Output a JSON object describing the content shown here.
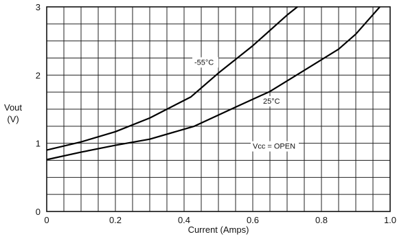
{
  "chart_data": {
    "type": "line",
    "title": "",
    "xlabel": "Current (Amps)",
    "ylabel": [
      "Vout",
      "(V)"
    ],
    "xlim": [
      0,
      1.0
    ],
    "ylim": [
      0,
      3
    ],
    "grid": true,
    "x_ticks": [
      {
        "value": 0,
        "label": "0"
      },
      {
        "value": 0.2,
        "label": "0.2"
      },
      {
        "value": 0.4,
        "label": "0.4"
      },
      {
        "value": 0.6,
        "label": "0.6"
      },
      {
        "value": 0.8,
        "label": "0.8"
      },
      {
        "value": 1.0,
        "label": "1.0"
      }
    ],
    "y_ticks": [
      {
        "value": 0,
        "label": "0"
      },
      {
        "value": 1,
        "label": "1"
      },
      {
        "value": 2,
        "label": "2"
      },
      {
        "value": 3,
        "label": "3"
      }
    ],
    "series": [
      {
        "name": "-55°C",
        "x": [
          0,
          0.1,
          0.2,
          0.3,
          0.42,
          0.5,
          0.6,
          0.7,
          0.73
        ],
        "y": [
          0.9,
          1.02,
          1.17,
          1.37,
          1.68,
          2.03,
          2.43,
          2.88,
          3.0
        ]
      },
      {
        "name": "25°C",
        "x": [
          0,
          0.1,
          0.2,
          0.3,
          0.43,
          0.55,
          0.65,
          0.75,
          0.85,
          0.9,
          0.97
        ],
        "y": [
          0.76,
          0.87,
          0.97,
          1.06,
          1.25,
          1.53,
          1.76,
          2.07,
          2.38,
          2.6,
          3.0
        ]
      }
    ],
    "annotations": [
      {
        "text": "-55°C",
        "x": 0.43,
        "y": 2.15
      },
      {
        "text": "25°C",
        "x": 0.63,
        "y": 1.58
      },
      {
        "text": "Vcc = OPEN",
        "x": 0.6,
        "y": 0.92
      }
    ]
  }
}
